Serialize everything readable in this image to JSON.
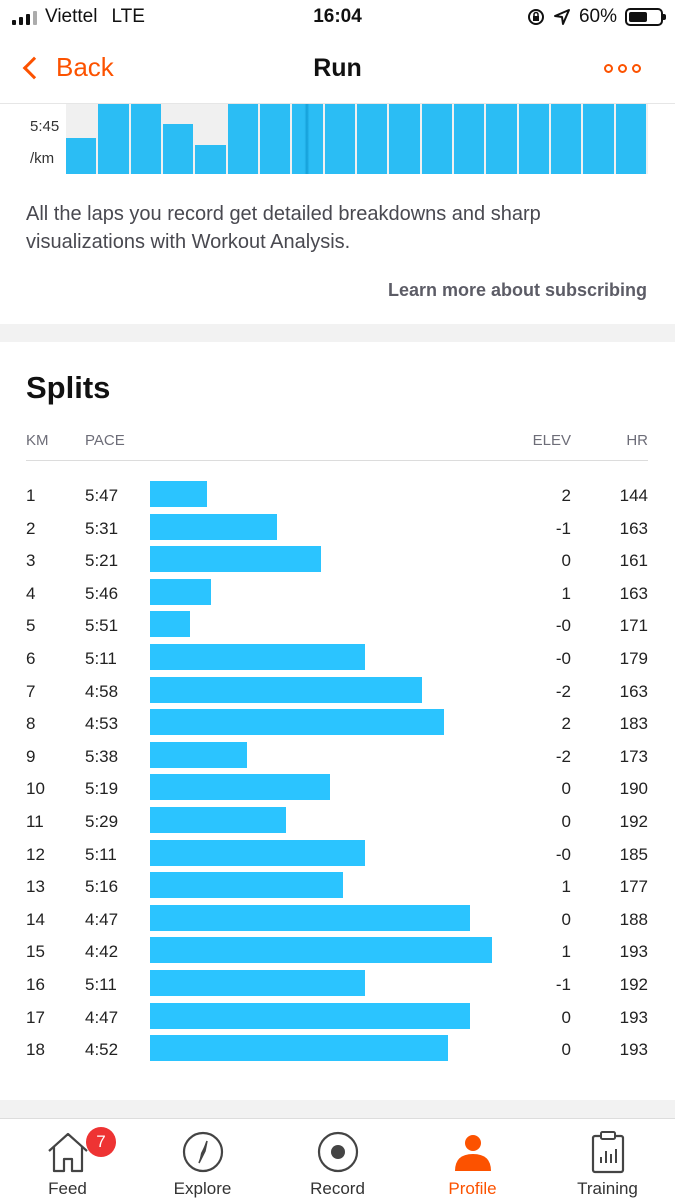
{
  "status": {
    "carrier": "Viettel",
    "network": "LTE",
    "time": "16:04",
    "battery": "60%",
    "battery_level": 0.6
  },
  "nav": {
    "back_label": "Back",
    "title": "Run"
  },
  "lap_chart": {
    "y_label_top": "5:45",
    "y_label_unit": "/km",
    "bar_heights": [
      0.52,
      1,
      1,
      0.72,
      0.42,
      1,
      1,
      1,
      1,
      1,
      1,
      1,
      1,
      1,
      1,
      1,
      1,
      1
    ]
  },
  "promo": {
    "text": "All the laps you record get detailed breakdowns and sharp visualizations with Workout Analysis.",
    "link": "Learn more about subscribing"
  },
  "splits": {
    "title": "Splits",
    "headers": {
      "km": "KM",
      "pace": "PACE",
      "elev": "ELEV",
      "hr": "HR"
    },
    "rows": [
      {
        "km": "1",
        "pace": "5:47",
        "elev": "2",
        "hr": "144"
      },
      {
        "km": "2",
        "pace": "5:31",
        "elev": "-1",
        "hr": "163"
      },
      {
        "km": "3",
        "pace": "5:21",
        "elev": "0",
        "hr": "161"
      },
      {
        "km": "4",
        "pace": "5:46",
        "elev": "1",
        "hr": "163"
      },
      {
        "km": "5",
        "pace": "5:51",
        "elev": "-0",
        "hr": "171"
      },
      {
        "km": "6",
        "pace": "5:11",
        "elev": "-0",
        "hr": "179"
      },
      {
        "km": "7",
        "pace": "4:58",
        "elev": "-2",
        "hr": "163"
      },
      {
        "km": "8",
        "pace": "4:53",
        "elev": "2",
        "hr": "183"
      },
      {
        "km": "9",
        "pace": "5:38",
        "elev": "-2",
        "hr": "173"
      },
      {
        "km": "10",
        "pace": "5:19",
        "elev": "0",
        "hr": "190"
      },
      {
        "km": "11",
        "pace": "5:29",
        "elev": "0",
        "hr": "192"
      },
      {
        "km": "12",
        "pace": "5:11",
        "elev": "-0",
        "hr": "185"
      },
      {
        "km": "13",
        "pace": "5:16",
        "elev": "1",
        "hr": "177"
      },
      {
        "km": "14",
        "pace": "4:47",
        "elev": "0",
        "hr": "188"
      },
      {
        "km": "15",
        "pace": "4:42",
        "elev": "1",
        "hr": "193"
      },
      {
        "km": "16",
        "pace": "5:11",
        "elev": "-1",
        "hr": "192"
      },
      {
        "km": "17",
        "pace": "4:47",
        "elev": "0",
        "hr": "193"
      },
      {
        "km": "18",
        "pace": "4:52",
        "elev": "0",
        "hr": "193"
      }
    ]
  },
  "tabs": [
    {
      "label": "Feed",
      "icon": "home-icon",
      "badge": "7"
    },
    {
      "label": "Explore",
      "icon": "compass-icon"
    },
    {
      "label": "Record",
      "icon": "record-icon"
    },
    {
      "label": "Profile",
      "icon": "profile-icon",
      "active": true
    },
    {
      "label": "Training",
      "icon": "clipboard-chart-icon"
    }
  ],
  "colors": {
    "accent": "#fc5200",
    "bar": "#2bc4ff",
    "badge": "#e33333"
  }
}
